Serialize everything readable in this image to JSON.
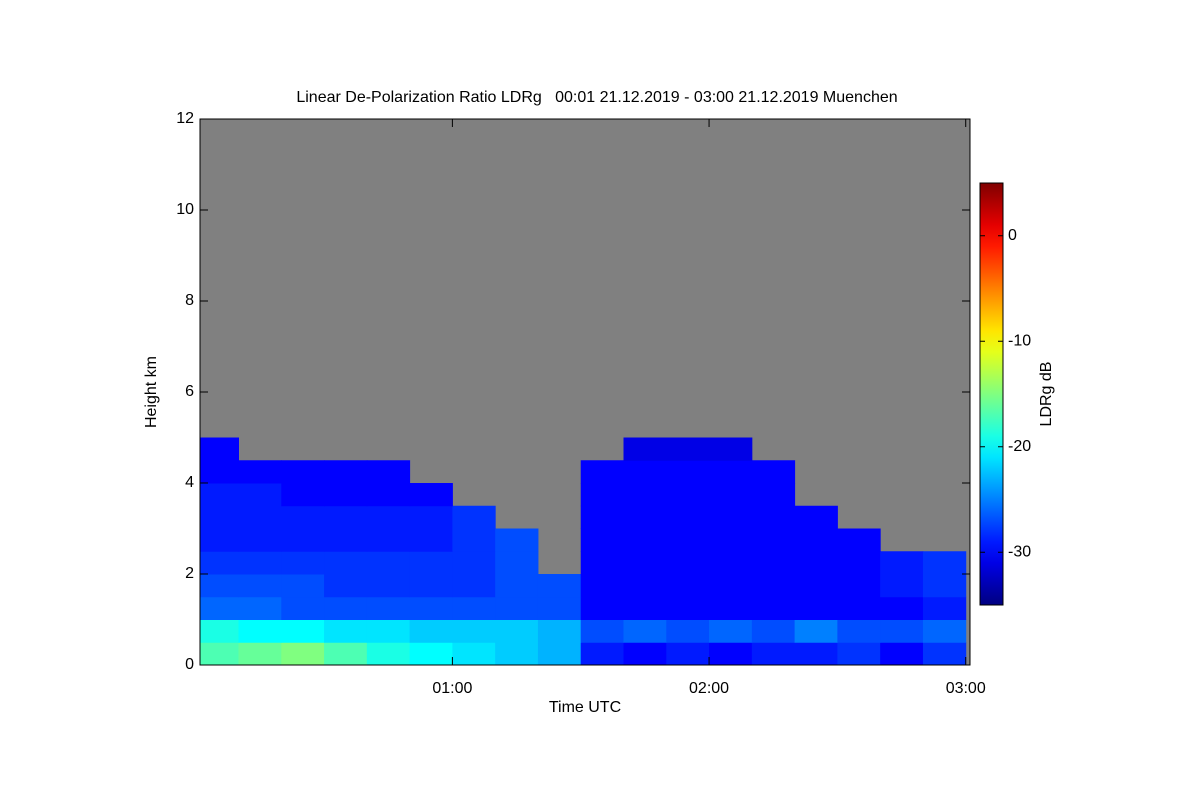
{
  "chart_data": {
    "type": "heatmap",
    "title": "Linear De-Polarization Ratio LDRg   00:01 21.12.2019 - 03:00 21.12.2019 Muenchen",
    "x_label": "Time UTC",
    "y_label": "Height km",
    "colorbar_label": "LDRg dB",
    "xlim": [
      1,
      181
    ],
    "ylim": [
      0,
      12
    ],
    "xticks": [
      {
        "value": 60,
        "label": "01:00"
      },
      {
        "value": 120,
        "label": "02:00"
      },
      {
        "value": 180,
        "label": "03:00"
      }
    ],
    "yticks": [
      0,
      2,
      4,
      6,
      8,
      10,
      12
    ],
    "zlim": [
      -35,
      5
    ],
    "zticks": [
      0,
      -10,
      -20,
      -30
    ],
    "colormap": "jet",
    "nodata_color": "#808080",
    "xbins": [
      1,
      10,
      20,
      30,
      40,
      50,
      60,
      70,
      80,
      90,
      100,
      110,
      120,
      130,
      140,
      150,
      160,
      170,
      180
    ],
    "ybins": [
      0,
      0.5,
      1,
      1.5,
      2,
      2.5,
      3,
      3.5,
      4,
      4.5,
      5
    ],
    "z": [
      [
        -17,
        -16,
        -15,
        -17,
        -19,
        -20,
        -21,
        -22,
        -23,
        -29,
        -30,
        -29,
        -30,
        -29,
        -29,
        -28,
        -30,
        -28
      ],
      [
        -19,
        -20,
        -20,
        -21,
        -21,
        -22,
        -22,
        -22,
        -23,
        -27,
        -26,
        -27,
        -26,
        -27,
        -25,
        -27,
        -27,
        -26
      ],
      [
        -26,
        -26,
        -27,
        -27,
        -27,
        -27,
        -27,
        -27,
        -27,
        -30,
        -30,
        -30,
        -30,
        -30,
        -30,
        -30,
        -30,
        -29
      ],
      [
        -27,
        -27,
        -27,
        -28,
        -28,
        -28,
        -28,
        -27,
        -27,
        -30,
        -30,
        -30,
        -30,
        -30,
        -30,
        -30,
        -29,
        -28
      ],
      [
        -28,
        -28,
        -28,
        -28,
        -28,
        -28,
        -28,
        -27,
        null,
        -30,
        -30,
        -30,
        -30,
        -30,
        -30,
        -30,
        -29,
        -28
      ],
      [
        -29,
        -29,
        -29,
        -29,
        -29,
        -29,
        -28,
        -27,
        null,
        -30,
        -30,
        -30,
        -30,
        -30,
        -30,
        -30,
        null,
        null
      ],
      [
        -29,
        -29,
        -29,
        -29,
        -29,
        -29,
        -28,
        null,
        null,
        -30,
        -30,
        -30,
        -30,
        -30,
        -30,
        null,
        null,
        null
      ],
      [
        -29,
        -29,
        -30,
        -30,
        -30,
        -30,
        null,
        null,
        null,
        -30,
        -30,
        -30,
        -30,
        -30,
        null,
        null,
        null,
        null
      ],
      [
        -30,
        -30,
        -30,
        -30,
        -30,
        null,
        null,
        null,
        null,
        -30,
        -30,
        -30,
        -30,
        -30,
        null,
        null,
        null,
        null
      ],
      [
        -30,
        null,
        null,
        null,
        null,
        null,
        null,
        null,
        null,
        null,
        -31,
        -31,
        -31,
        null,
        null,
        null,
        null,
        null
      ]
    ]
  }
}
